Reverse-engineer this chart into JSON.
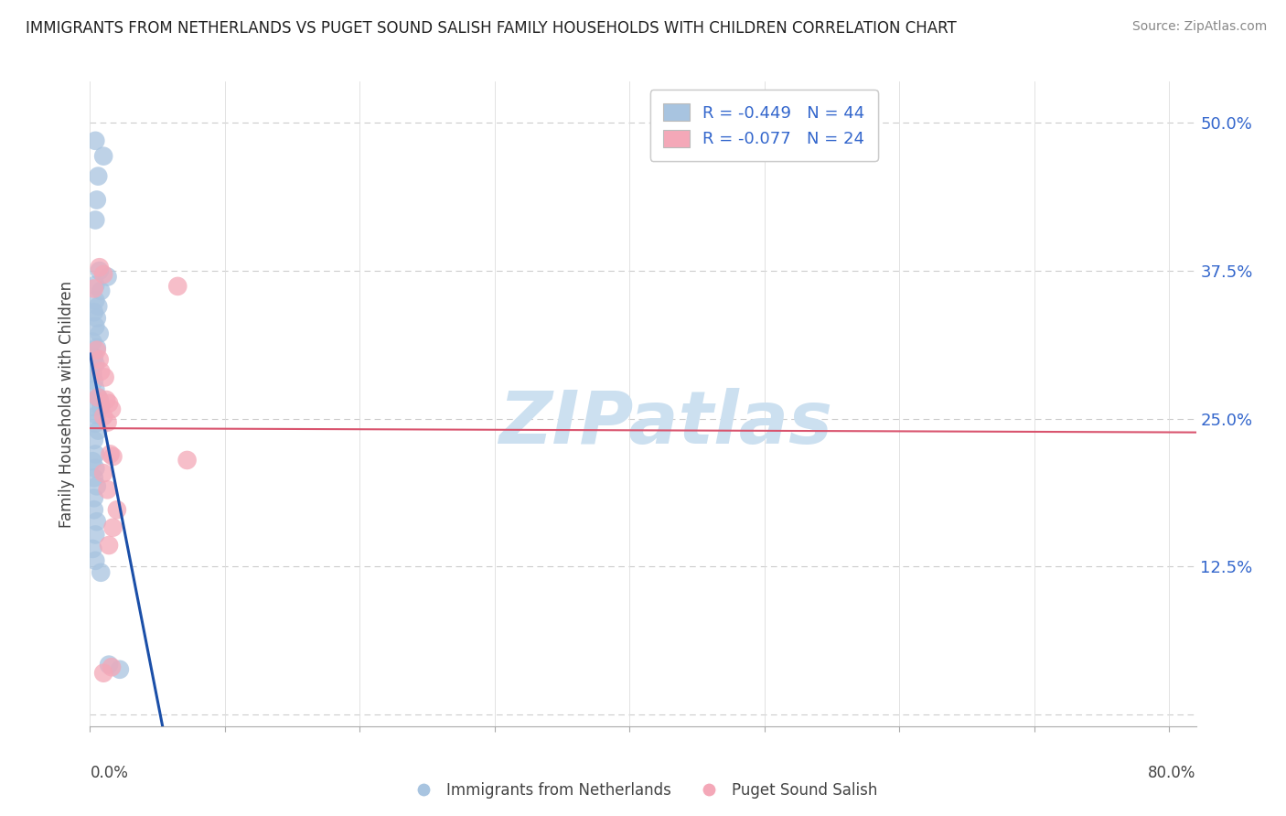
{
  "title": "IMMIGRANTS FROM NETHERLANDS VS PUGET SOUND SALISH FAMILY HOUSEHOLDS WITH CHILDREN CORRELATION CHART",
  "source": "Source: ZipAtlas.com",
  "ylabel": "Family Households with Children",
  "ytick_labels": [
    "",
    "12.5%",
    "25.0%",
    "37.5%",
    "50.0%"
  ],
  "ytick_values": [
    0.0,
    0.125,
    0.25,
    0.375,
    0.5
  ],
  "xtick_values": [
    0.0,
    0.1,
    0.2,
    0.3,
    0.4,
    0.5,
    0.6,
    0.7,
    0.8
  ],
  "xlim": [
    0.0,
    0.82
  ],
  "ylim": [
    -0.01,
    0.535
  ],
  "legend_blue_label": "R = -0.449   N = 44",
  "legend_pink_label": "R = -0.077   N = 24",
  "legend_bottom_blue": "Immigrants from Netherlands",
  "legend_bottom_pink": "Puget Sound Salish",
  "blue_color": "#a8c4e0",
  "blue_line_color": "#1b4fa8",
  "pink_color": "#f4a8b8",
  "pink_line_color": "#d9546e",
  "blue_scatter": [
    [
      0.004,
      0.485
    ],
    [
      0.01,
      0.472
    ],
    [
      0.006,
      0.455
    ],
    [
      0.005,
      0.435
    ],
    [
      0.004,
      0.418
    ],
    [
      0.007,
      0.375
    ],
    [
      0.013,
      0.37
    ],
    [
      0.004,
      0.363
    ],
    [
      0.008,
      0.358
    ],
    [
      0.004,
      0.35
    ],
    [
      0.006,
      0.345
    ],
    [
      0.003,
      0.34
    ],
    [
      0.005,
      0.335
    ],
    [
      0.004,
      0.328
    ],
    [
      0.007,
      0.322
    ],
    [
      0.002,
      0.315
    ],
    [
      0.005,
      0.31
    ],
    [
      0.003,
      0.302
    ],
    [
      0.004,
      0.296
    ],
    [
      0.002,
      0.288
    ],
    [
      0.003,
      0.282
    ],
    [
      0.004,
      0.275
    ],
    [
      0.006,
      0.268
    ],
    [
      0.002,
      0.26
    ],
    [
      0.005,
      0.253
    ],
    [
      0.004,
      0.246
    ],
    [
      0.006,
      0.24
    ],
    [
      0.003,
      0.232
    ],
    [
      0.007,
      0.266
    ],
    [
      0.008,
      0.26
    ],
    [
      0.004,
      0.22
    ],
    [
      0.002,
      0.214
    ],
    [
      0.004,
      0.208
    ],
    [
      0.003,
      0.2
    ],
    [
      0.005,
      0.193
    ],
    [
      0.003,
      0.183
    ],
    [
      0.003,
      0.173
    ],
    [
      0.005,
      0.163
    ],
    [
      0.004,
      0.152
    ],
    [
      0.002,
      0.14
    ],
    [
      0.004,
      0.13
    ],
    [
      0.008,
      0.12
    ],
    [
      0.014,
      0.042
    ],
    [
      0.022,
      0.038
    ]
  ],
  "pink_scatter": [
    [
      0.007,
      0.378
    ],
    [
      0.01,
      0.372
    ],
    [
      0.003,
      0.36
    ],
    [
      0.005,
      0.308
    ],
    [
      0.007,
      0.3
    ],
    [
      0.008,
      0.29
    ],
    [
      0.011,
      0.285
    ],
    [
      0.006,
      0.268
    ],
    [
      0.012,
      0.266
    ],
    [
      0.014,
      0.263
    ],
    [
      0.016,
      0.258
    ],
    [
      0.01,
      0.252
    ],
    [
      0.013,
      0.247
    ],
    [
      0.015,
      0.22
    ],
    [
      0.017,
      0.218
    ],
    [
      0.01,
      0.204
    ],
    [
      0.013,
      0.19
    ],
    [
      0.02,
      0.173
    ],
    [
      0.017,
      0.158
    ],
    [
      0.014,
      0.143
    ],
    [
      0.016,
      0.04
    ],
    [
      0.065,
      0.362
    ],
    [
      0.072,
      0.215
    ],
    [
      0.01,
      0.035
    ]
  ],
  "watermark": "ZIPatlas",
  "watermark_color": "#cce0f0",
  "background_color": "#ffffff",
  "grid_color": "#cccccc",
  "blue_line_x": [
    0.0,
    0.245
  ],
  "pink_line_x": [
    0.0,
    0.82
  ]
}
